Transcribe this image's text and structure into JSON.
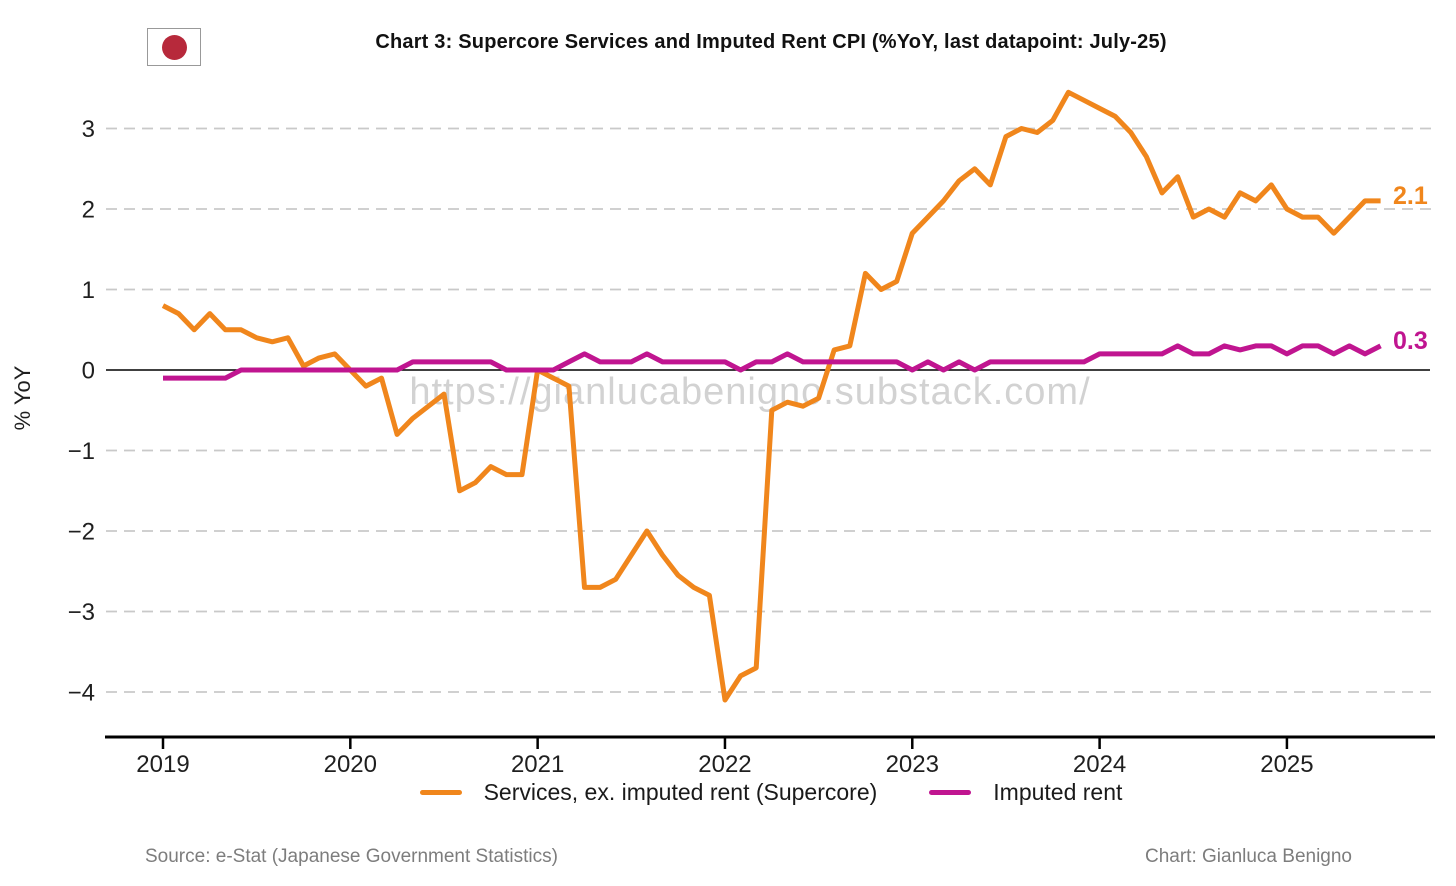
{
  "header": {
    "title": "Chart 3: Supercore Services and Imputed Rent CPI (%YoY, last datapoint: July-25)",
    "flag_colors": {
      "field": "#ffffff",
      "sun": "#b7293b",
      "border": "#999999"
    }
  },
  "watermark": "https://gianlucabenigno.substack.com/",
  "footer": {
    "source": "Source: e-Stat (Japanese Government Statistics)",
    "credit": "Chart: Gianluca Benigno"
  },
  "chart_data": {
    "type": "line",
    "title": "Chart 3: Supercore Services and Imputed Rent CPI (%YoY, last datapoint: July-25)",
    "ylabel": "% YoY",
    "xlabel": "",
    "frequency": "monthly",
    "x_start": "2019-01",
    "x_end": "2025-07",
    "ylim": [
      -4.55,
      3.55
    ],
    "grid": "horizontal dashed",
    "legend_position": "bottom center",
    "x_ticks": [
      "2019",
      "2020",
      "2021",
      "2022",
      "2023",
      "2024",
      "2025"
    ],
    "y_ticks": [
      {
        "value": 3,
        "label": "3"
      },
      {
        "value": 2,
        "label": "2"
      },
      {
        "value": 1,
        "label": "1"
      },
      {
        "value": 0,
        "label": "0"
      },
      {
        "value": -1,
        "label": "−1"
      },
      {
        "value": -2,
        "label": "−2"
      },
      {
        "value": -3,
        "label": "−3"
      },
      {
        "value": -4,
        "label": "−4"
      }
    ],
    "series": [
      {
        "key": "supercore",
        "name": "Services, ex. imputed rent (Supercore)",
        "color": "#F0861C",
        "end_label": "2.1",
        "values": [
          0.8,
          0.7,
          0.5,
          0.7,
          0.5,
          0.5,
          0.4,
          0.35,
          0.4,
          0.05,
          0.15,
          0.2,
          0.0,
          -0.2,
          -0.1,
          -0.8,
          -0.6,
          -0.45,
          -0.3,
          -1.5,
          -1.4,
          -1.2,
          -1.3,
          -1.3,
          0.0,
          -0.1,
          -0.2,
          -2.7,
          -2.7,
          -2.6,
          -2.3,
          -2.0,
          -2.3,
          -2.55,
          -2.7,
          -2.8,
          -4.1,
          -3.8,
          -3.7,
          -0.5,
          -0.4,
          -0.45,
          -0.35,
          0.25,
          0.3,
          1.2,
          1.0,
          1.1,
          1.7,
          1.9,
          2.1,
          2.35,
          2.5,
          2.3,
          2.9,
          3.0,
          2.95,
          3.1,
          3.45,
          3.35,
          3.25,
          3.15,
          2.95,
          2.65,
          2.2,
          2.4,
          1.9,
          2.0,
          1.9,
          2.2,
          2.1,
          2.3,
          2.0,
          1.9,
          1.9,
          1.7,
          1.9,
          2.1,
          2.1
        ]
      },
      {
        "key": "imputed-rent",
        "name": "Imputed rent",
        "color": "#C01590",
        "end_label": "0.3",
        "values": [
          -0.1,
          -0.1,
          -0.1,
          -0.1,
          -0.1,
          0.0,
          0.0,
          0.0,
          0.0,
          0.0,
          0.0,
          0.0,
          0.0,
          0.0,
          0.0,
          0.0,
          0.1,
          0.1,
          0.1,
          0.1,
          0.1,
          0.1,
          0.0,
          0.0,
          0.0,
          0.0,
          0.1,
          0.2,
          0.1,
          0.1,
          0.1,
          0.2,
          0.1,
          0.1,
          0.1,
          0.1,
          0.1,
          0.0,
          0.1,
          0.1,
          0.2,
          0.1,
          0.1,
          0.1,
          0.1,
          0.1,
          0.1,
          0.1,
          0.0,
          0.1,
          0.0,
          0.1,
          0.0,
          0.1,
          0.1,
          0.1,
          0.1,
          0.1,
          0.1,
          0.1,
          0.2,
          0.2,
          0.2,
          0.2,
          0.2,
          0.3,
          0.2,
          0.2,
          0.3,
          0.25,
          0.3,
          0.3,
          0.2,
          0.3,
          0.3,
          0.2,
          0.3,
          0.2,
          0.3
        ]
      }
    ],
    "style_colors": {
      "gridline": "#C9C9C9",
      "zero_line": "#000000",
      "axis_line": "#000000",
      "tick_label": "#1f1f1f",
      "watermark": "#D2D2D2"
    }
  }
}
